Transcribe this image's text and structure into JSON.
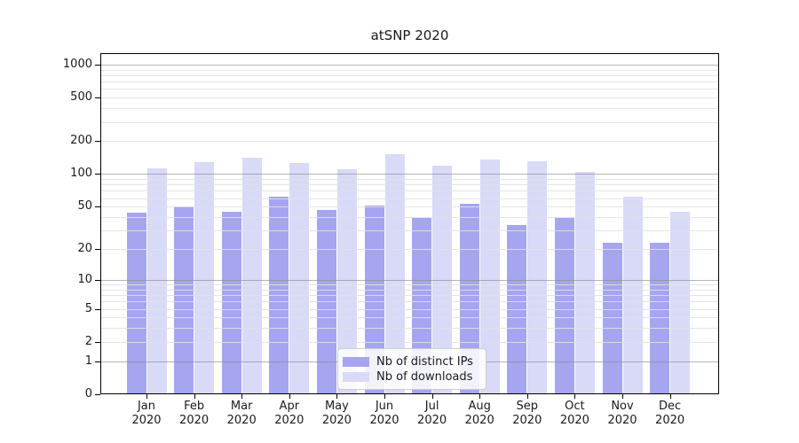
{
  "title": "atSNP 2020",
  "chart_data": {
    "type": "bar",
    "title": "atSNP 2020",
    "y_scale": "log10(1+x)",
    "grid": "on",
    "categories": [
      "Jan",
      "Feb",
      "Mar",
      "Apr",
      "May",
      "Jun",
      "Jul",
      "Aug",
      "Sep",
      "Oct",
      "Nov",
      "Dec"
    ],
    "category_year": "2020",
    "series": [
      {
        "name": "Nb of distinct IPs",
        "color": "#a5a5f0",
        "values": [
          44,
          50,
          45,
          62,
          47,
          51,
          39,
          53,
          34,
          39,
          23,
          23
        ]
      },
      {
        "name": "Nb of downloads",
        "color": "#d9d9f8",
        "values": [
          112,
          128,
          141,
          127,
          110,
          152,
          119,
          135,
          130,
          104,
          62,
          45
        ]
      }
    ],
    "y_ticks": [
      {
        "label": "1000",
        "value": 1000
      },
      {
        "label": "500",
        "value": 500
      },
      {
        "label": "200",
        "value": 200
      },
      {
        "label": "100",
        "value": 100
      },
      {
        "label": "50",
        "value": 50
      },
      {
        "label": "20",
        "value": 20
      },
      {
        "label": "10",
        "value": 10
      },
      {
        "label": "5",
        "value": 5
      },
      {
        "label": "2",
        "value": 2
      },
      {
        "label": "1",
        "value": 1
      },
      {
        "label": "0",
        "value": 0
      }
    ],
    "ylim": [
      0,
      1270
    ],
    "gridlines": {
      "major": [
        1000,
        100,
        10,
        1
      ],
      "minor": [
        900,
        800,
        700,
        600,
        500,
        400,
        300,
        200,
        90,
        80,
        70,
        60,
        50,
        40,
        30,
        20,
        9,
        8,
        7,
        6,
        5,
        4,
        3,
        2
      ]
    },
    "legend": {
      "position": "lower center",
      "entries": [
        "Nb of distinct IPs",
        "Nb of downloads"
      ]
    },
    "colors": {
      "major_grid": "#a8a8a8",
      "minor_grid": "#e3e3e3",
      "spine": "#000000",
      "text": "#1a1a1a"
    }
  }
}
